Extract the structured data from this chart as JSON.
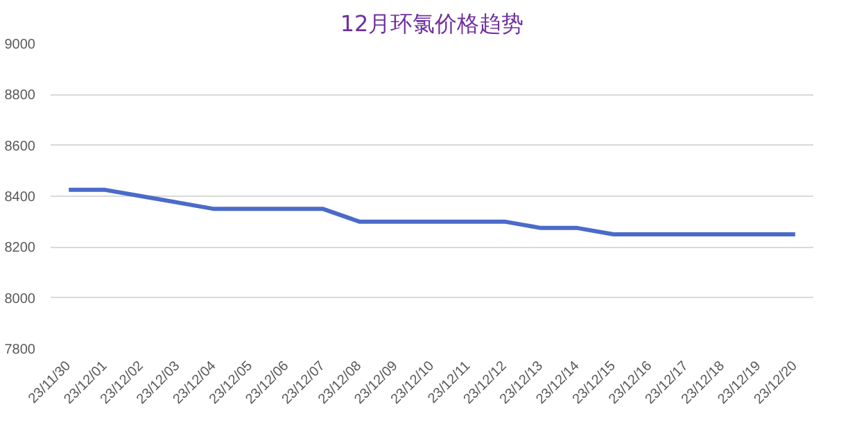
{
  "chart_data": {
    "type": "line",
    "title": "12月环氯价格趋势",
    "categories": [
      "23/11/30",
      "23/12/01",
      "23/12/02",
      "23/12/03",
      "23/12/04",
      "23/12/05",
      "23/12/06",
      "23/12/07",
      "23/12/08",
      "23/12/09",
      "23/12/10",
      "23/12/11",
      "23/12/12",
      "23/12/13",
      "23/12/14",
      "23/12/15",
      "23/12/16",
      "23/12/17",
      "23/12/18",
      "23/12/19",
      "23/12/20"
    ],
    "series": [
      {
        "color": "#4a6bc8",
        "values": [
          8425,
          8425,
          8400,
          8375,
          8350,
          8350,
          8350,
          8350,
          8300,
          8300,
          8300,
          8300,
          8300,
          8275,
          8275,
          8250,
          8250,
          8250,
          8250,
          8250,
          8250
        ]
      }
    ],
    "ylim": [
      7800,
      9000
    ],
    "yticks": [
      7800,
      8000,
      8200,
      8400,
      8600,
      8800,
      9000
    ],
    "grid": "y",
    "marker": "none",
    "line_style": "solid"
  }
}
